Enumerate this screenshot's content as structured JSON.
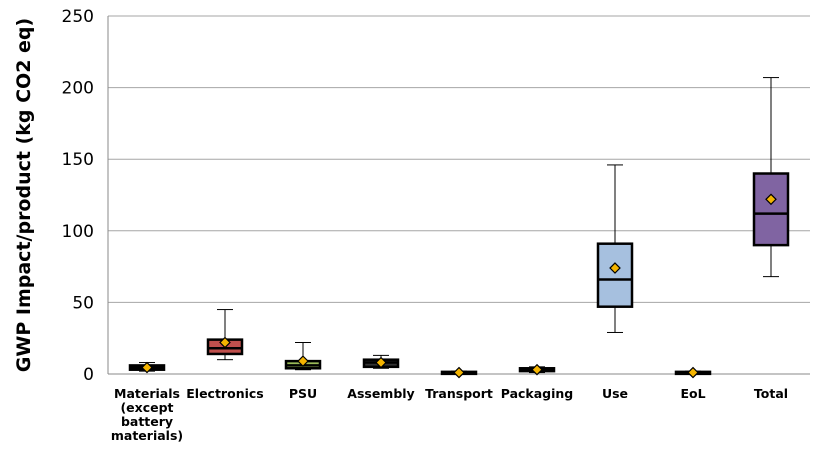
{
  "chart_data": {
    "type": "box",
    "ylabel": "GWP Impact/product (kg CO2 eq)",
    "ylim": [
      0,
      250
    ],
    "yticks": [
      "0",
      "50",
      "100",
      "150",
      "200",
      "250"
    ],
    "grid": true,
    "categories": [
      [
        "Materials",
        "(except",
        "battery",
        "materials)"
      ],
      [
        "Electronics"
      ],
      [
        "PSU"
      ],
      [
        "Assembly"
      ],
      [
        "Transport"
      ],
      [
        "Packaging"
      ],
      [
        "Use"
      ],
      [
        "EoL"
      ],
      [
        "Total"
      ]
    ],
    "boxes": [
      {
        "min": 2,
        "q1": 3,
        "median": 4.5,
        "q3": 6,
        "max": 8,
        "mean": 4.5,
        "color": "#333333"
      },
      {
        "min": 10,
        "q1": 14,
        "median": 18,
        "q3": 24,
        "max": 45,
        "mean": 22,
        "color": "#c0504d"
      },
      {
        "min": 3,
        "q1": 4,
        "median": 6,
        "q3": 9,
        "max": 22,
        "mean": 9,
        "color": "#9bbb59"
      },
      {
        "min": 4,
        "q1": 5,
        "median": 8,
        "q3": 10,
        "max": 13,
        "mean": 8,
        "color": "#333333"
      },
      {
        "min": 0,
        "q1": 0.5,
        "median": 1,
        "q3": 1.5,
        "max": 2,
        "mean": 1,
        "color": "#333333"
      },
      {
        "min": 1,
        "q1": 2,
        "median": 3,
        "q3": 4,
        "max": 5,
        "mean": 3,
        "color": "#333333"
      },
      {
        "min": 29,
        "q1": 47,
        "median": 66,
        "q3": 91,
        "max": 146,
        "mean": 74,
        "color": "#a6c0df"
      },
      {
        "min": 0,
        "q1": 0.5,
        "median": 1,
        "q3": 1.5,
        "max": 2,
        "mean": 1,
        "color": "#333333"
      },
      {
        "min": 68,
        "q1": 90,
        "median": 112,
        "q3": 140,
        "max": 207,
        "mean": 122,
        "color": "#8064a2"
      }
    ],
    "mean_marker_color": "#f4b400"
  }
}
